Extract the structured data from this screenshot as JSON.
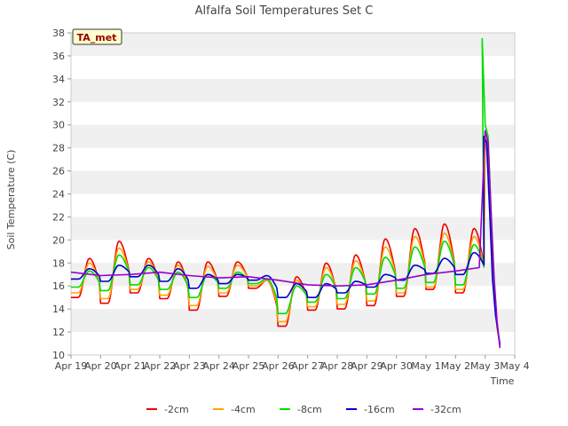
{
  "chart_data": {
    "type": "line",
    "title": "Alfalfa Soil Temperatures Set C",
    "xlabel": "Time",
    "ylabel": "Soil Temperature (C)",
    "ylim": [
      10,
      38
    ],
    "yticks": [
      10,
      12,
      14,
      16,
      18,
      20,
      22,
      24,
      26,
      28,
      30,
      32,
      34,
      36,
      38
    ],
    "xlim": [
      0,
      15
    ],
    "x_tick_labels": [
      "Apr 19",
      "Apr 20",
      "Apr 21",
      "Apr 22",
      "Apr 23",
      "Apr 24",
      "Apr 25",
      "Apr 26",
      "Apr 27",
      "Apr 28",
      "Apr 29",
      "Apr 30",
      "May 1",
      "May 2",
      "May 3",
      "May 4"
    ],
    "grid": "horizontal bands",
    "legend_position": "bottom",
    "badge": "TA_met",
    "colors": {
      "band": "#f0f0f0",
      "badge_fill": "#ffffcc",
      "badge_text": "#990000"
    },
    "daily_extremes_note": "min/max per day for Apr 19 - May 2, then sensor spike on May 3",
    "series": [
      {
        "name": "-2cm",
        "color": "#ee0000",
        "mins": [
          15.0,
          14.5,
          15.4,
          14.9,
          13.9,
          15.1,
          15.8,
          12.5,
          13.9,
          14.0,
          14.3,
          15.1,
          15.7,
          15.4
        ],
        "maxs": [
          18.4,
          19.9,
          18.4,
          18.1,
          18.1,
          18.1,
          16.5,
          16.8,
          18.0,
          18.7,
          20.1,
          21.0,
          21.4,
          21.0
        ],
        "end": [
          [
            14.0,
            29.0
          ],
          [
            14.1,
            28.0
          ],
          [
            14.2,
            22.0
          ],
          [
            14.3,
            16.0
          ],
          [
            14.4,
            12.5
          ],
          [
            14.5,
            10.8
          ]
        ]
      },
      {
        "name": "-4cm",
        "color": "#ffa500",
        "mins": [
          15.4,
          14.9,
          15.7,
          15.2,
          14.3,
          15.4,
          16.0,
          12.9,
          14.2,
          14.4,
          14.7,
          15.4,
          15.9,
          15.7
        ],
        "maxs": [
          18.0,
          19.3,
          18.1,
          17.8,
          17.7,
          17.8,
          16.5,
          16.5,
          17.6,
          18.2,
          19.4,
          20.3,
          20.6,
          20.3
        ],
        "end": [
          [
            14.0,
            29.2
          ],
          [
            14.1,
            28.2
          ],
          [
            14.2,
            22.2
          ],
          [
            14.3,
            16.2
          ],
          [
            14.4,
            12.6
          ],
          [
            14.5,
            10.8
          ]
        ]
      },
      {
        "name": "-8cm",
        "color": "#00dd00",
        "mins": [
          15.9,
          15.6,
          16.1,
          15.7,
          15.0,
          15.8,
          16.2,
          13.6,
          14.6,
          14.9,
          15.3,
          15.8,
          16.3,
          16.1
        ],
        "maxs": [
          17.3,
          18.7,
          17.6,
          17.2,
          17.0,
          17.2,
          16.6,
          16.0,
          17.0,
          17.6,
          18.5,
          19.4,
          19.9,
          19.6
        ],
        "end": [
          [
            13.9,
            37.5
          ],
          [
            14.0,
            30.0
          ],
          [
            14.1,
            29.0
          ],
          [
            14.2,
            22.5
          ],
          [
            14.3,
            16.5
          ],
          [
            14.4,
            12.8
          ],
          [
            14.5,
            10.9
          ]
        ]
      },
      {
        "name": "-16cm",
        "color": "#0000cc",
        "mins": [
          16.6,
          16.4,
          16.8,
          16.4,
          15.8,
          16.2,
          16.5,
          15.0,
          15.0,
          15.4,
          15.9,
          16.5,
          17.1,
          17.0
        ],
        "maxs": [
          17.5,
          17.8,
          17.8,
          17.5,
          17.0,
          17.0,
          16.9,
          16.2,
          16.2,
          16.4,
          17.0,
          17.8,
          18.4,
          18.9
        ],
        "end": [
          [
            13.95,
            29.0
          ],
          [
            14.05,
            28.5
          ],
          [
            14.15,
            22.5
          ],
          [
            14.25,
            16.5
          ],
          [
            14.35,
            13.5
          ],
          [
            14.5,
            10.9
          ]
        ]
      },
      {
        "name": "-32cm",
        "color": "#9900cc",
        "points": [
          [
            0.0,
            17.2
          ],
          [
            1.0,
            16.9
          ],
          [
            2.0,
            17.0
          ],
          [
            3.0,
            17.2
          ],
          [
            4.0,
            16.9
          ],
          [
            5.0,
            16.7
          ],
          [
            6.0,
            16.8
          ],
          [
            7.0,
            16.5
          ],
          [
            8.0,
            16.1
          ],
          [
            9.0,
            16.0
          ],
          [
            10.0,
            16.1
          ],
          [
            11.0,
            16.5
          ],
          [
            12.0,
            17.0
          ],
          [
            13.0,
            17.3
          ],
          [
            13.8,
            17.6
          ],
          [
            14.0,
            29.5
          ],
          [
            14.1,
            28.5
          ],
          [
            14.2,
            22.5
          ],
          [
            14.3,
            16.8
          ],
          [
            14.4,
            13.0
          ],
          [
            14.5,
            10.6
          ]
        ]
      }
    ]
  }
}
